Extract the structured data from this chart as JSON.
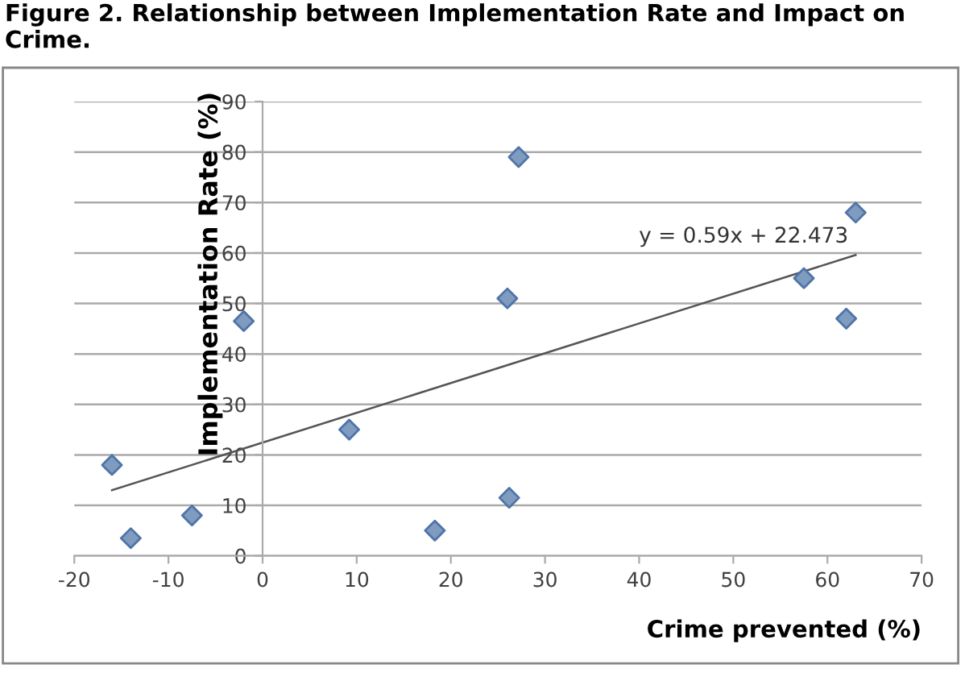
{
  "chart_data": {
    "type": "scatter",
    "title": "Figure 2. Relationship between Implementation Rate and Impact on Crime.",
    "xlabel": "Crime prevented (%)",
    "ylabel": "Implementation Rate (%)",
    "grid": "y",
    "xlim": [
      -20,
      70
    ],
    "xticks": [
      -20,
      -10,
      0,
      10,
      20,
      30,
      40,
      50,
      60,
      70
    ],
    "ylim": [
      0,
      90
    ],
    "yticks": [
      0,
      10,
      20,
      30,
      40,
      50,
      60,
      70,
      80,
      90
    ],
    "series": [
      {
        "marker": "diamond",
        "color": "#7f9bc0",
        "x": [
          -16,
          -14,
          -7.5,
          -2,
          9.2,
          18.3,
          26,
          26.2,
          27.2,
          57.5,
          62,
          63
        ],
        "values": [
          18,
          3.5,
          8,
          46.5,
          25,
          5,
          51,
          11.5,
          79,
          55,
          47,
          68
        ]
      },
      {
        "type": "line",
        "color": "#555555",
        "x": [
          -16,
          63
        ],
        "values": [
          13,
          59.6
        ]
      }
    ],
    "annotations": [
      "y = 0.59x + 22.473"
    ]
  }
}
